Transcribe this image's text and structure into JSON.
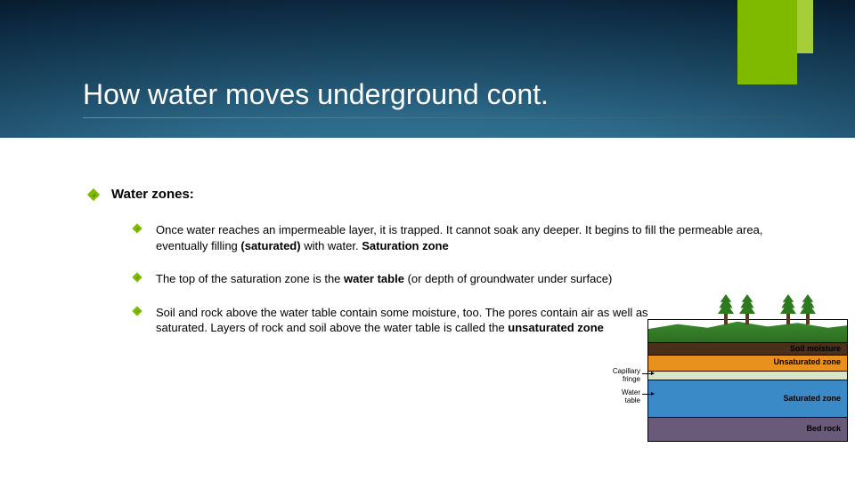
{
  "title": "How water moves underground cont.",
  "accent_color": "#7fba00",
  "accent_light_color": "#a6ce39",
  "content": {
    "heading": "Water zones:",
    "bullets": [
      {
        "pre": "Once water reaches an impermeable layer, it is trapped. It cannot soak any deeper. It begins to fill the permeable area, eventually filling ",
        "bold1": "(saturated)",
        "mid": " with water. ",
        "bold2": "Saturation zone"
      },
      {
        "pre": "The top of the saturation zone is the ",
        "bold1": "water table",
        "post": " (or depth of groundwater under surface)"
      },
      {
        "pre": "Soil and rock above the water table contain some moisture, too. The pores contain air as well as water, they are not saturated. Layers of rock and soil above the water table is called the ",
        "bold1": "unsaturated zone"
      }
    ]
  },
  "diagram": {
    "layers": {
      "soil_moisture": {
        "label": "Soil moisture",
        "color": "#4a2f1a"
      },
      "unsaturated": {
        "label": "Unsaturated zone",
        "color": "#e8911e"
      },
      "saturated": {
        "label": "Saturated zone",
        "color": "#3a8ac8"
      },
      "bedrock": {
        "label": "Bed rock",
        "color": "#6a5a7a"
      },
      "grass": {
        "color": "#3a8a2e"
      }
    },
    "left_labels": {
      "capillary": "Capillary\nfringe",
      "water_table": "Water\ntable"
    },
    "tree_positions": [
      78,
      102,
      148,
      170
    ]
  }
}
